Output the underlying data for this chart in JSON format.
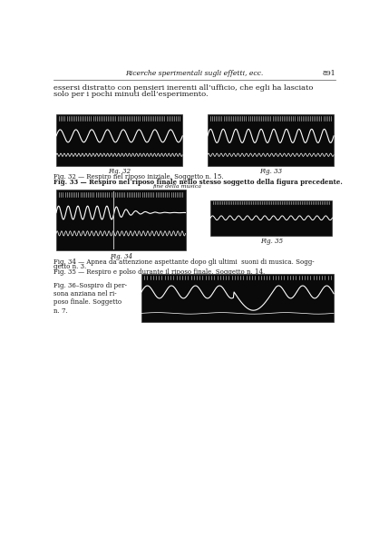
{
  "page_width": 4.18,
  "page_height": 6.02,
  "bg_color": "#ffffff",
  "header_text": "Ricerche sperimentali sugli effetti, ecc.",
  "header_page_num": "891",
  "body_text_line1": "essersi distratto con pensieri inerenti all’ufficio, che egli ha lasciato",
  "body_text_line2": "solo per i pochi minuti dell’esperimento.",
  "fig32_label": "Fig. 32",
  "fig33_label": "Fig. 33",
  "fig34_label": "Fig. 34",
  "fig35_label": "Fig. 35",
  "caption32": "Fig. 32 — Respiro nel riposo iniziale. Soggetto n. 15.",
  "caption33": "Fig. 33 — Respiro nel riposo finale nello stesso soggetto della figura precedente.",
  "caption33b": "fine della musica",
  "caption34": "Fig. 34 — Apnea da attenzione aspettante dopo gli ultimi  suoni di musica. Sogg-",
  "caption34b": "getto n. 3.",
  "caption35": "Fig. 35 — Respiro e polso durante il riposo finale. Soggetto n. 14.",
  "caption36_side": "Fig. 36–Sospiro di per-\nsona anziana nel ri-\nposo finale. Soggetto\nn. 7.",
  "text_color": "#1a1a1a",
  "fig_bg": "#111111",
  "wave_color": "#ffffff",
  "tick_color": "#dddddd"
}
